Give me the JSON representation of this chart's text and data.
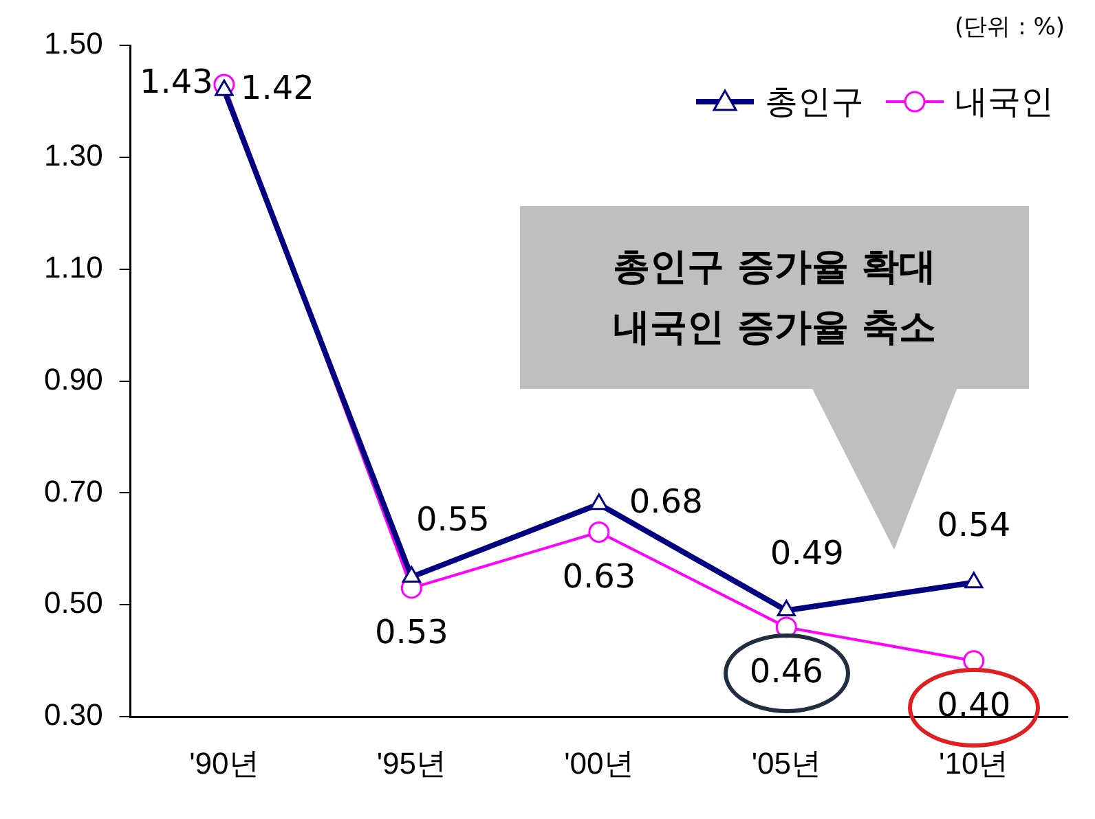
{
  "chart_data": {
    "type": "line",
    "categories": [
      "'90년",
      "'95년",
      "'00년",
      "'05년",
      "'10년"
    ],
    "series": [
      {
        "name": "총인구",
        "color": "#000080",
        "marker": "triangle",
        "values": [
          1.42,
          0.55,
          0.68,
          0.49,
          0.54
        ],
        "value_labels": [
          "1.42",
          "0.55",
          "0.68",
          "0.49",
          "0.54"
        ]
      },
      {
        "name": "내국인",
        "color": "#ff00ff",
        "marker": "circle",
        "values": [
          1.43,
          0.53,
          0.63,
          0.46,
          0.4
        ],
        "value_labels": [
          "1.43",
          "0.53",
          "0.63",
          "0.46",
          "0.40"
        ]
      }
    ],
    "ylim": [
      0.3,
      1.5
    ],
    "yticks": [
      {
        "value": 0.3,
        "label": "0.30"
      },
      {
        "value": 0.5,
        "label": "0.50"
      },
      {
        "value": 0.7,
        "label": "0.70"
      },
      {
        "value": 0.9,
        "label": "0.90"
      },
      {
        "value": 1.1,
        "label": "1.10"
      },
      {
        "value": 1.3,
        "label": "1.30"
      },
      {
        "value": 1.5,
        "label": "1.50"
      }
    ],
    "grid": false,
    "legend": "top right",
    "line_style": "solid",
    "annotations": [
      "(단위 : %)",
      "총인구 증가율 확대\n내국인 증가율 축소"
    ]
  }
}
